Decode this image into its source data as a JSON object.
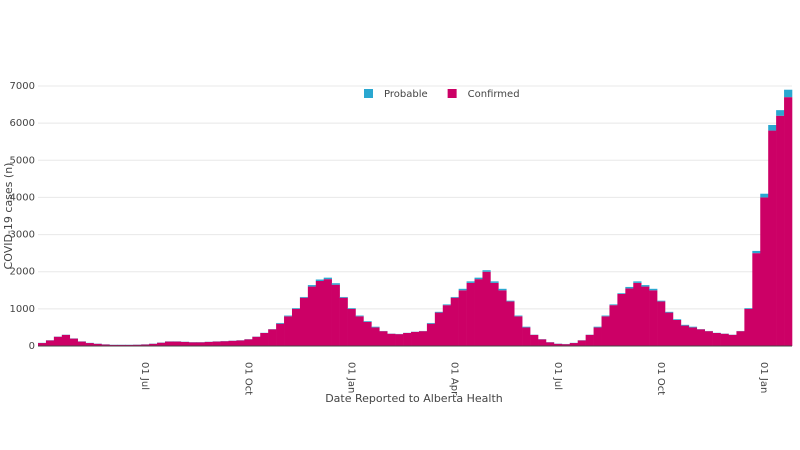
{
  "chart_data": {
    "type": "stacked_bar",
    "xlabel": "Date Reported to Alberta Health",
    "ylabel": "COVID-19 cases (n)",
    "categories": [
      null,
      null,
      null,
      null,
      null,
      null,
      null,
      null,
      null,
      null,
      null,
      null,
      null,
      "01 Jul",
      null,
      null,
      null,
      null,
      null,
      null,
      null,
      null,
      null,
      null,
      null,
      null,
      "01 Oct",
      null,
      null,
      null,
      null,
      null,
      null,
      null,
      null,
      null,
      null,
      null,
      null,
      "01 Jan",
      null,
      null,
      null,
      null,
      null,
      null,
      null,
      null,
      null,
      null,
      null,
      null,
      "01 Apr",
      null,
      null,
      null,
      null,
      null,
      null,
      null,
      null,
      null,
      null,
      null,
      null,
      "01 Jul",
      null,
      null,
      null,
      null,
      null,
      null,
      null,
      null,
      null,
      null,
      null,
      null,
      "01 Oct",
      null,
      null,
      null,
      null,
      null,
      null,
      null,
      null,
      null,
      null,
      null,
      null,
      "01 Jan",
      null,
      null,
      null
    ],
    "series": [
      {
        "name": "Probable",
        "color": "#2aa7d0",
        "values": [
          5,
          5,
          5,
          5,
          5,
          5,
          5,
          5,
          5,
          5,
          5,
          5,
          5,
          5,
          5,
          5,
          5,
          5,
          5,
          5,
          5,
          5,
          5,
          5,
          5,
          5,
          5,
          5,
          5,
          5,
          20,
          20,
          20,
          20,
          40,
          40,
          40,
          40,
          20,
          20,
          20,
          20,
          20,
          5,
          5,
          5,
          5,
          5,
          5,
          20,
          20,
          20,
          20,
          40,
          40,
          40,
          40,
          40,
          40,
          20,
          20,
          20,
          5,
          5,
          5,
          5,
          5,
          5,
          5,
          5,
          20,
          20,
          20,
          20,
          40,
          40,
          40,
          40,
          20,
          20,
          20,
          20,
          20,
          5,
          5,
          5,
          5,
          5,
          5,
          20,
          60,
          100,
          150,
          150,
          200
        ]
      },
      {
        "name": "Confirmed",
        "color": "#cc0066",
        "values": [
          80,
          150,
          250,
          300,
          200,
          120,
          80,
          60,
          40,
          30,
          30,
          30,
          35,
          40,
          60,
          90,
          120,
          120,
          110,
          100,
          100,
          110,
          120,
          130,
          140,
          150,
          180,
          250,
          350,
          450,
          600,
          800,
          1000,
          1300,
          1600,
          1750,
          1800,
          1650,
          1300,
          1000,
          800,
          650,
          500,
          400,
          330,
          320,
          350,
          380,
          400,
          600,
          900,
          1100,
          1300,
          1500,
          1700,
          1800,
          2000,
          1700,
          1500,
          1200,
          800,
          500,
          300,
          180,
          100,
          60,
          50,
          80,
          150,
          300,
          500,
          800,
          1100,
          1400,
          1550,
          1700,
          1600,
          1500,
          1200,
          900,
          700,
          550,
          500,
          450,
          400,
          350,
          330,
          300,
          400,
          1000,
          2500,
          4000,
          5800,
          6200,
          6700
        ]
      }
    ],
    "ylim": [
      0,
      7000
    ],
    "yticks": [
      0,
      1000,
      2000,
      3000,
      4000,
      5000,
      6000,
      7000
    ],
    "grid": true,
    "legend": "top"
  }
}
